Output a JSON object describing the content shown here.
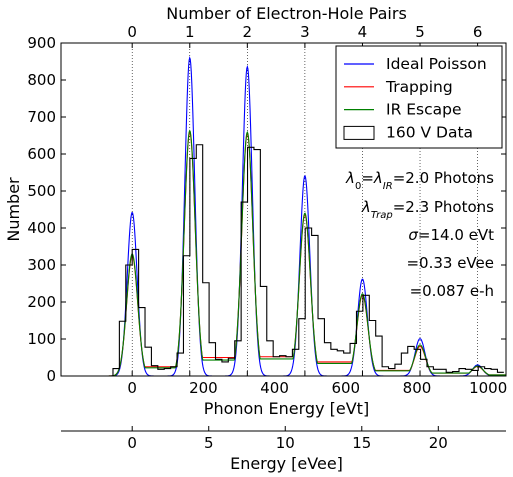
{
  "chart_data": {
    "type": "line",
    "title": "",
    "xlabel": "Phonon Energy [eVt]",
    "ylabel": "Number",
    "top_xlabel": "Number of Electron-Hole Pairs",
    "bottom2_xlabel": "Energy [eVee]",
    "xlim": [
      -200,
      1050
    ],
    "ylim": [
      0,
      900
    ],
    "x_ticks": [
      0,
      200,
      400,
      600,
      800,
      1000
    ],
    "x_tick_labels": [
      "0",
      "200",
      "400",
      "600",
      "800",
      "1000"
    ],
    "y_ticks": [
      0,
      100,
      200,
      300,
      400,
      500,
      600,
      700,
      800,
      900
    ],
    "y_tick_labels": [
      "0",
      "100",
      "200",
      "300",
      "400",
      "500",
      "600",
      "700",
      "800",
      "900"
    ],
    "top_ticks_pairs": [
      0,
      1,
      2,
      3,
      4,
      5,
      6
    ],
    "top_tick_labels": [
      "0",
      "1",
      "2",
      "3",
      "4",
      "5",
      "6"
    ],
    "top_tick_spacing_eVt": 161.7,
    "eVee_ticks": [
      0,
      5,
      10,
      15,
      20
    ],
    "eVee_tick_labels": [
      "0",
      "5",
      "10",
      "15",
      "20"
    ],
    "eVee_per_eVt": 0.02326,
    "grid": "vertical dotted at electron-hole pair energies",
    "legend_position": "top-right",
    "series": [
      {
        "name": "Ideal Poisson",
        "color": "#0000ff",
        "style": "sum of gaussians",
        "sigma": 14.0,
        "peaks": [
          {
            "x": 0,
            "y": 442
          },
          {
            "x": 161.7,
            "y": 860
          },
          {
            "x": 323.4,
            "y": 836
          },
          {
            "x": 485.1,
            "y": 541
          },
          {
            "x": 646.8,
            "y": 262
          },
          {
            "x": 808.5,
            "y": 101
          },
          {
            "x": 970.2,
            "y": 30
          }
        ],
        "baseline": 0
      },
      {
        "name": "Trapping",
        "color": "#ff0000",
        "style": "gaussian peaks with plateaus",
        "sigma": 15.5,
        "peaks": [
          {
            "x": 0,
            "y": 325
          },
          {
            "x": 161.7,
            "y": 658
          },
          {
            "x": 323.4,
            "y": 655
          },
          {
            "x": 485.1,
            "y": 436
          },
          {
            "x": 646.8,
            "y": 218
          },
          {
            "x": 808.5,
            "y": 80
          },
          {
            "x": 970.2,
            "y": 26
          }
        ],
        "plateaus": [
          25,
          50,
          52,
          38,
          15,
          8,
          3
        ]
      },
      {
        "name": "IR Escape",
        "color": "#008000",
        "style": "gaussian peaks with plateaus",
        "sigma": 15.5,
        "peaks": [
          {
            "x": 0,
            "y": 330
          },
          {
            "x": 161.7,
            "y": 663
          },
          {
            "x": 323.4,
            "y": 659
          },
          {
            "x": 485.1,
            "y": 440
          },
          {
            "x": 646.8,
            "y": 222
          },
          {
            "x": 808.5,
            "y": 84
          },
          {
            "x": 970.2,
            "y": 27
          }
        ],
        "plateaus": [
          22,
          43,
          46,
          34,
          14,
          8,
          3
        ]
      },
      {
        "name": "160 V Data",
        "color": "#000000",
        "style": "step histogram",
        "bin_width": 18,
        "bin_starts": [
          -54,
          -36,
          -18,
          0,
          18,
          36,
          54,
          72,
          90,
          108,
          126,
          144,
          162,
          180,
          198,
          216,
          234,
          252,
          270,
          288,
          306,
          324,
          342,
          360,
          378,
          396,
          414,
          432,
          450,
          468,
          486,
          504,
          522,
          540,
          558,
          576,
          594,
          612,
          630,
          648,
          666,
          684,
          702,
          720,
          738,
          756,
          774,
          792,
          810,
          828,
          846,
          864,
          882,
          900,
          918,
          936,
          954,
          972,
          990,
          1008,
          1026
        ],
        "bin_values": [
          20,
          148,
          300,
          342,
          185,
          78,
          28,
          18,
          20,
          25,
          62,
          325,
          588,
          625,
          252,
          90,
          45,
          38,
          48,
          95,
          470,
          618,
          612,
          242,
          95,
          52,
          55,
          52,
          72,
          155,
          400,
          380,
          155,
          90,
          72,
          68,
          62,
          88,
          175,
          218,
          150,
          108,
          25,
          20,
          32,
          62,
          80,
          72,
          45,
          25,
          18,
          18,
          10,
          12,
          20,
          18,
          15,
          25,
          20,
          18,
          10
        ]
      }
    ],
    "annotations": [
      {
        "text": "λ0=λIR=2.0 Photons",
        "parts": [
          {
            "t": "λ",
            "i": true
          },
          {
            "t": "0",
            "i": false,
            "sub": true
          },
          {
            "t": "=",
            "i": false
          },
          {
            "t": "λ",
            "i": true
          },
          {
            "t": "IR",
            "i": true,
            "sub": true
          },
          {
            "t": "=2.0 Photons",
            "i": false
          }
        ]
      },
      {
        "text": "λTrap=2.3 Photons",
        "parts": [
          {
            "t": "λ",
            "i": true
          },
          {
            "t": "Trap",
            "i": true,
            "sub": true
          },
          {
            "t": "=2.3 Photons",
            "i": false
          }
        ]
      },
      {
        "text": "σ=14.0 eVt",
        "parts": [
          {
            "t": "σ",
            "i": true
          },
          {
            "t": "=14.0 eVt",
            "i": false
          }
        ]
      },
      {
        "text": "=0.33 eVee",
        "parts": [
          {
            "t": "=0.33 eVee",
            "i": false
          }
        ]
      },
      {
        "text": "=0.087 e-h",
        "parts": [
          {
            "t": "=0.087 e-h",
            "i": false
          }
        ]
      }
    ]
  }
}
